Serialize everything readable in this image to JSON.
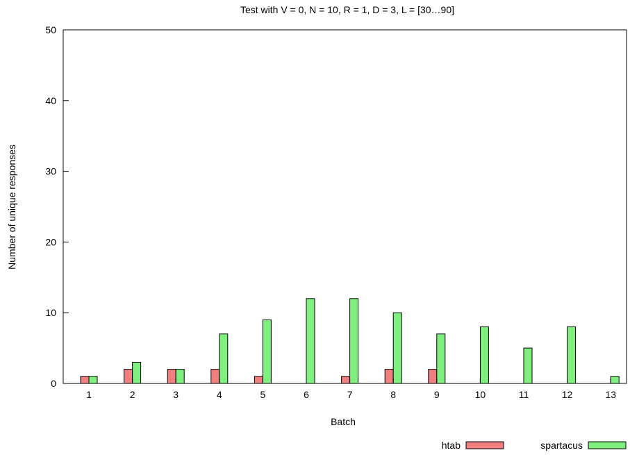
{
  "chart_data": {
    "type": "bar",
    "title": "Test with V = 0, N = 10, R = 1, D = 3, L = [30…90]",
    "xlabel": "Batch",
    "ylabel": "Number of unique responses",
    "categories": [
      "1",
      "2",
      "3",
      "4",
      "5",
      "6",
      "7",
      "8",
      "9",
      "10",
      "11",
      "12",
      "13"
    ],
    "ylim": [
      0,
      50
    ],
    "yticks": [
      0,
      10,
      20,
      30,
      40,
      50
    ],
    "grid": false,
    "legend_position": "bottom-right",
    "series": [
      {
        "name": "htab",
        "color": "#f07f7f",
        "values": [
          1,
          2,
          2,
          2,
          1,
          0,
          1,
          2,
          2,
          0,
          0,
          0,
          0
        ]
      },
      {
        "name": "spartacus",
        "color": "#7ff07f",
        "values": [
          1,
          3,
          2,
          7,
          9,
          12,
          12,
          10,
          7,
          8,
          5,
          8,
          1
        ]
      }
    ]
  }
}
